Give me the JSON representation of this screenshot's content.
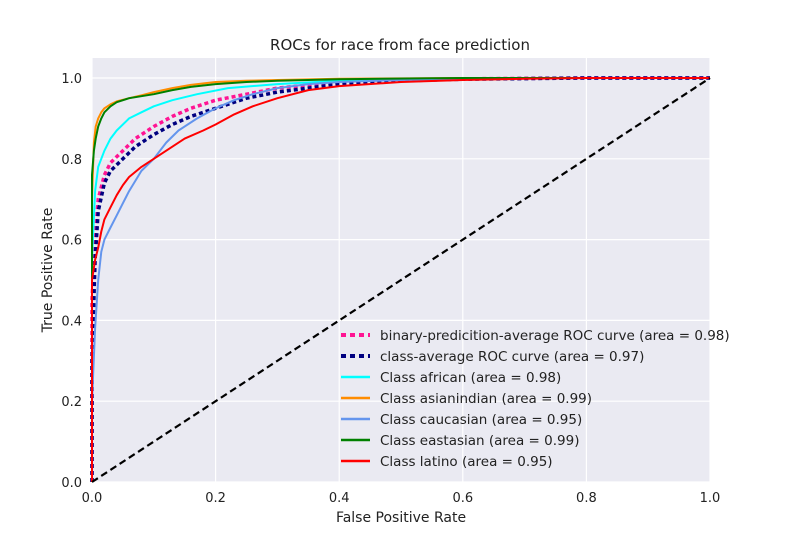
{
  "chart_data": {
    "type": "line",
    "title": "ROCs for race from face prediction",
    "xlabel": "False Positive Rate",
    "ylabel": "True Positive Rate",
    "xlim": [
      0.0,
      1.0
    ],
    "ylim": [
      0.0,
      1.0
    ],
    "xticks": [
      "0.0",
      "0.2",
      "0.4",
      "0.6",
      "0.8",
      "1.0"
    ],
    "yticks": [
      "0.0",
      "0.2",
      "0.4",
      "0.6",
      "0.8",
      "1.0"
    ],
    "grid": true,
    "background": "#eaeaf2",
    "legend_position": "lower-right",
    "series": [
      {
        "name": "binary-predicition-average ROC curve (area = 0.98)",
        "color": "#ff1493",
        "style": "dotted",
        "x": [
          0.0,
          0.0,
          0.005,
          0.01,
          0.02,
          0.03,
          0.05,
          0.07,
          0.1,
          0.13,
          0.16,
          0.2,
          0.25,
          0.3,
          0.4,
          0.5,
          0.6,
          0.8,
          1.0
        ],
        "y": [
          0.0,
          0.45,
          0.6,
          0.7,
          0.76,
          0.79,
          0.82,
          0.85,
          0.88,
          0.905,
          0.925,
          0.945,
          0.96,
          0.975,
          0.99,
          0.995,
          0.998,
          1.0,
          1.0
        ]
      },
      {
        "name": "class-average ROC curve (area = 0.97)",
        "color": "#000080",
        "style": "dotted",
        "x": [
          0.0,
          0.0,
          0.005,
          0.01,
          0.02,
          0.03,
          0.05,
          0.07,
          0.1,
          0.13,
          0.16,
          0.2,
          0.25,
          0.3,
          0.4,
          0.5,
          0.6,
          0.8,
          1.0
        ],
        "y": [
          0.0,
          0.3,
          0.55,
          0.67,
          0.74,
          0.77,
          0.8,
          0.83,
          0.86,
          0.885,
          0.905,
          0.925,
          0.95,
          0.965,
          0.985,
          0.993,
          0.997,
          1.0,
          1.0
        ]
      },
      {
        "name": "Class african (area = 0.98)",
        "color": "#00ffff",
        "style": "solid",
        "x": [
          0.0,
          0.0,
          0.005,
          0.01,
          0.02,
          0.03,
          0.04,
          0.06,
          0.08,
          0.1,
          0.13,
          0.17,
          0.22,
          0.3,
          0.4,
          0.5,
          0.7,
          1.0
        ],
        "y": [
          0.0,
          0.55,
          0.72,
          0.78,
          0.82,
          0.85,
          0.87,
          0.9,
          0.915,
          0.93,
          0.945,
          0.96,
          0.975,
          0.985,
          0.993,
          0.997,
          1.0,
          1.0
        ]
      },
      {
        "name": "Class asianindian (area = 0.99)",
        "color": "#ff8c00",
        "style": "solid",
        "x": [
          0.0,
          0.0,
          0.003,
          0.006,
          0.01,
          0.015,
          0.02,
          0.03,
          0.04,
          0.06,
          0.08,
          0.1,
          0.13,
          0.16,
          0.2,
          0.25,
          0.3,
          0.4,
          0.6,
          1.0
        ],
        "y": [
          0.0,
          0.7,
          0.84,
          0.88,
          0.9,
          0.915,
          0.925,
          0.935,
          0.942,
          0.95,
          0.957,
          0.965,
          0.975,
          0.983,
          0.99,
          0.993,
          0.995,
          0.998,
          1.0,
          1.0
        ]
      },
      {
        "name": "Class caucasian (area = 0.95)",
        "color": "#6495ed",
        "style": "solid",
        "x": [
          0.0,
          0.0,
          0.005,
          0.01,
          0.015,
          0.02,
          0.03,
          0.04,
          0.05,
          0.06,
          0.08,
          0.1,
          0.12,
          0.14,
          0.17,
          0.2,
          0.23,
          0.26,
          0.3,
          0.35,
          0.4,
          0.5,
          0.6,
          0.7,
          0.8,
          1.0
        ],
        "y": [
          0.0,
          0.2,
          0.38,
          0.5,
          0.57,
          0.6,
          0.63,
          0.66,
          0.69,
          0.72,
          0.77,
          0.8,
          0.84,
          0.87,
          0.9,
          0.925,
          0.945,
          0.96,
          0.975,
          0.985,
          0.99,
          0.995,
          0.997,
          0.999,
          1.0,
          1.0
        ]
      },
      {
        "name": "Class eastasian (area = 0.99)",
        "color": "#008000",
        "style": "solid",
        "x": [
          0.0,
          0.0,
          0.003,
          0.006,
          0.01,
          0.015,
          0.02,
          0.03,
          0.04,
          0.06,
          0.08,
          0.1,
          0.13,
          0.16,
          0.2,
          0.25,
          0.3,
          0.4,
          0.6,
          1.0
        ],
        "y": [
          0.0,
          0.76,
          0.82,
          0.85,
          0.88,
          0.9,
          0.915,
          0.93,
          0.94,
          0.95,
          0.955,
          0.96,
          0.97,
          0.978,
          0.985,
          0.99,
          0.993,
          0.997,
          1.0,
          1.0
        ]
      },
      {
        "name": "Class latino (area = 0.95)",
        "color": "#ff0000",
        "style": "solid",
        "x": [
          0.0,
          0.0,
          0.005,
          0.01,
          0.015,
          0.02,
          0.03,
          0.04,
          0.05,
          0.06,
          0.08,
          0.1,
          0.12,
          0.15,
          0.18,
          0.2,
          0.23,
          0.26,
          0.3,
          0.35,
          0.4,
          0.5,
          0.6,
          0.7,
          0.8,
          1.0
        ],
        "y": [
          0.0,
          0.5,
          0.55,
          0.58,
          0.62,
          0.65,
          0.68,
          0.71,
          0.735,
          0.755,
          0.78,
          0.8,
          0.82,
          0.85,
          0.87,
          0.885,
          0.91,
          0.93,
          0.95,
          0.97,
          0.98,
          0.99,
          0.995,
          0.998,
          1.0,
          1.0
        ]
      },
      {
        "name": "",
        "color": "#000000",
        "style": "dashed",
        "x": [
          0.0,
          1.0
        ],
        "y": [
          0.0,
          1.0
        ]
      }
    ]
  }
}
